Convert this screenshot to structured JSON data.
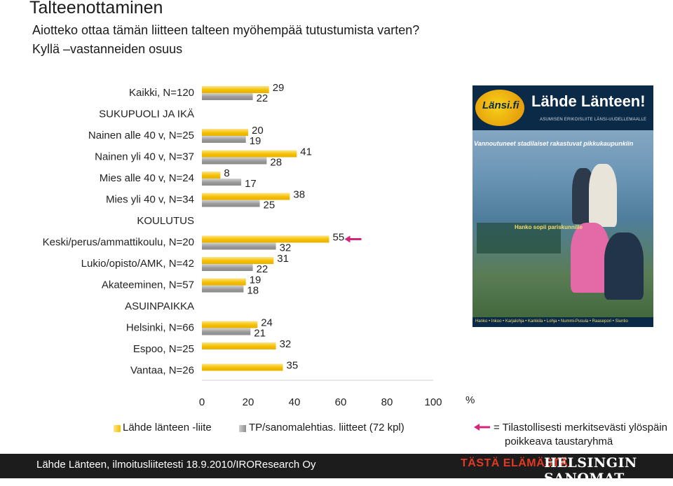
{
  "header": {
    "title": "Talteenottaminen",
    "question": "Aiotteko ottaa tämän liitteen talteen myöhempää tutustumista varten?",
    "subtitle": "Kyllä –vastanneiden osuus"
  },
  "chart_data": {
    "type": "bar",
    "orientation": "horizontal",
    "categories": [
      "Kaikki, N=120",
      "SUKUPUOLI JA IKÄ",
      "Nainen alle 40 v, N=25",
      "Nainen yli 40 v, N=37",
      "Mies alle 40 v, N=24",
      "Mies yli 40 v, N=34",
      "KOULUTUS",
      "Keski/perus/ammattikoulu, N=20",
      "Lukio/opisto/AMK, N=42",
      "Akateeminen, N=57",
      "ASUINPAIKKA",
      "Helsinki, N=66",
      "Espoo, N=25",
      "Vantaa, N=26"
    ],
    "series": [
      {
        "name": "Lähde länteen -liite",
        "color": "#f5c000",
        "values": [
          29,
          null,
          20,
          41,
          8,
          38,
          null,
          55,
          31,
          19,
          null,
          24,
          32,
          35
        ]
      },
      {
        "name": "TP/sanomalehtias. liitteet (72 kpl)",
        "color": "#9a9a9a",
        "values": [
          22,
          null,
          19,
          28,
          17,
          25,
          null,
          32,
          22,
          18,
          null,
          21,
          null,
          null
        ]
      }
    ],
    "significant_up": [
      7
    ],
    "xlim": [
      0,
      100
    ],
    "xticks": [
      0,
      20,
      40,
      60,
      80,
      100
    ],
    "xunit": "%"
  },
  "legend": {
    "series1": "Lähde länteen -liite",
    "series2": "TP/sanomalehtias. liitteet (72 kpl)",
    "arrow_line1": "= Tilastollisesti merkitsevästi ylöspäin",
    "arrow_line2": "poikkeava taustaryhmä",
    "arrow_color": "#d6247a"
  },
  "footer": {
    "source": "Lähde Länteen, ilmoitusliitetesti 18.9.2010/IROResearch Oy",
    "brand1": "TÄSTÄ ELÄMÄSTÄ.",
    "brand2": "HELSINGIN SANOMAT"
  },
  "cover": {
    "logo": "Länsi.fi",
    "name": "Lähde Länteen!",
    "sub": "ASUMISEN ERIKOISLIITE LÄNSI-UUDELLEMAALLE",
    "tagline": "Vannoutuneet stadilaiset rakastuvat pikkukaupunkiin",
    "mid": "Hanko sopii pariskunnille",
    "strip": "Hanko • Inkoo • Karjalohja • Karkkila • Lohja • Nummi-Pusula • Raasepori • Siuntio"
  }
}
